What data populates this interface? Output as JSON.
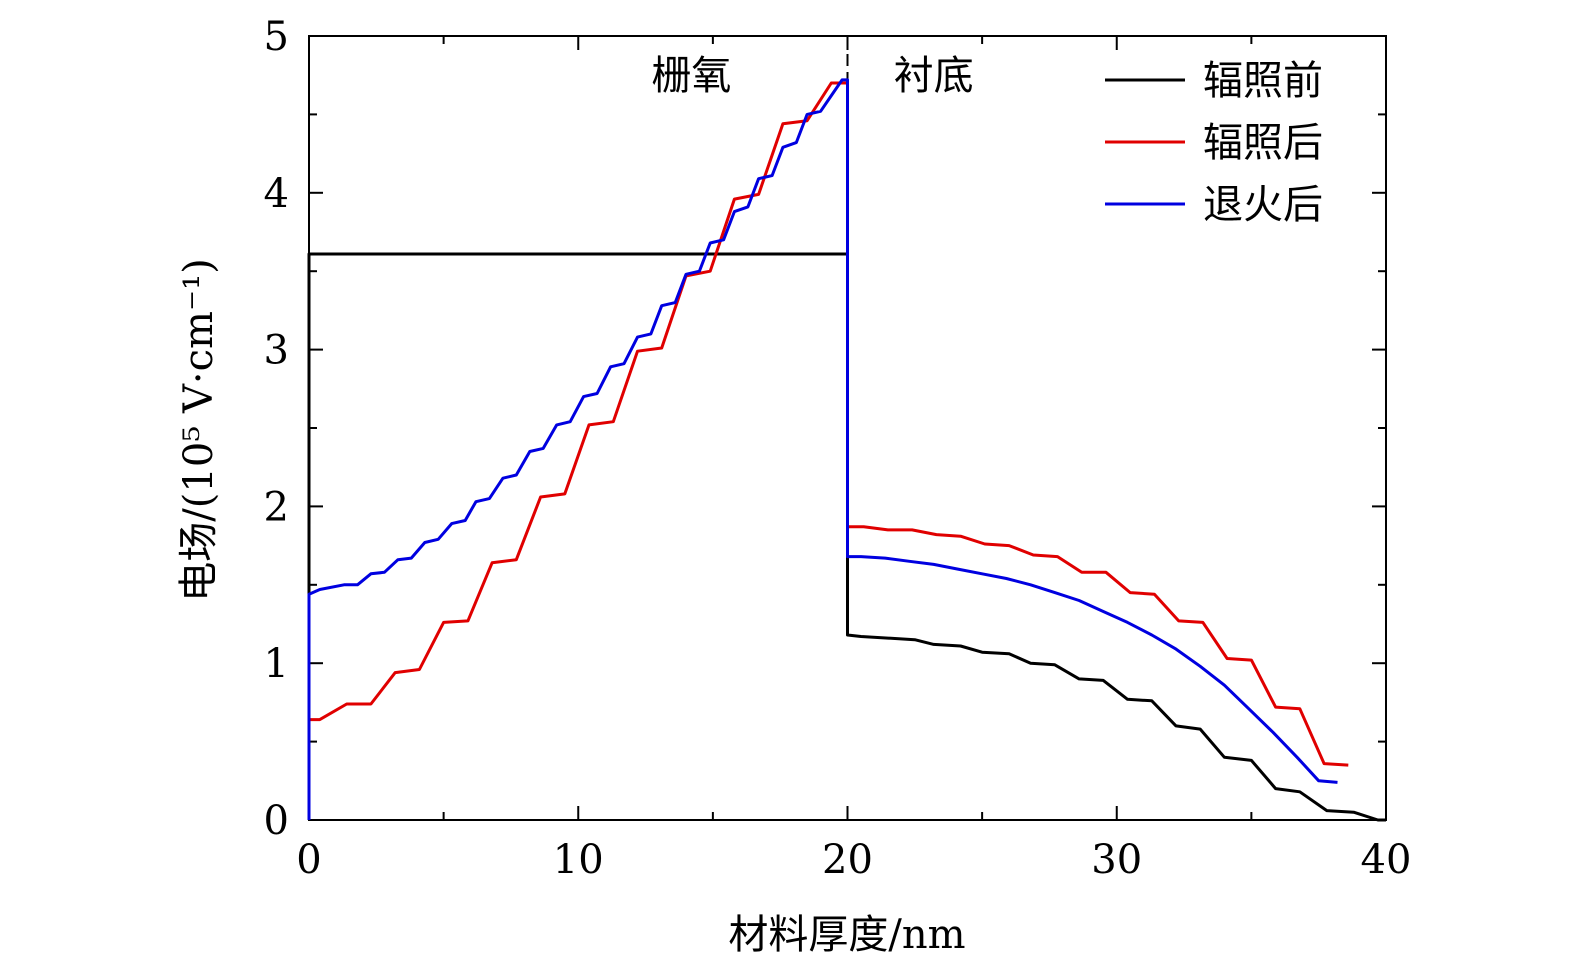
{
  "chart_data": {
    "type": "line",
    "title": "",
    "xlabel": "材料厚度/nm",
    "ylabel": "电场/(10⁵ V·cm⁻¹)",
    "xlim": [
      0,
      40
    ],
    "ylim": [
      0,
      5
    ],
    "x_ticks": [
      0,
      10,
      20,
      30,
      40
    ],
    "x_tick_labels": [
      "0",
      "10",
      "20",
      "30",
      "40"
    ],
    "y_ticks": [
      0,
      1,
      2,
      3,
      4,
      5
    ],
    "y_tick_labels": [
      "0",
      "1",
      "2",
      "3",
      "4",
      "5"
    ],
    "grid": false,
    "legend_position": "top-right",
    "annotations": [
      {
        "text": "栅氧",
        "x": 14.2,
        "y": 4.75
      },
      {
        "text": "衬底",
        "x": 23.2,
        "y": 4.75
      }
    ],
    "divider_x": 20,
    "series": [
      {
        "name": "辐照前",
        "color": "#000000",
        "points": [
          [
            0,
            0
          ],
          [
            0,
            3.61
          ],
          [
            20,
            3.61
          ],
          [
            20,
            1.18
          ],
          [
            20.5,
            1.17
          ],
          [
            21.5,
            1.16
          ],
          [
            22.5,
            1.15
          ],
          [
            23.2,
            1.12
          ],
          [
            24.2,
            1.11
          ],
          [
            25,
            1.07
          ],
          [
            26,
            1.06
          ],
          [
            26.8,
            1.0
          ],
          [
            27.7,
            0.99
          ],
          [
            28.6,
            0.9
          ],
          [
            29.5,
            0.89
          ],
          [
            30.4,
            0.77
          ],
          [
            31.3,
            0.76
          ],
          [
            32.2,
            0.6
          ],
          [
            33.1,
            0.58
          ],
          [
            34,
            0.4
          ],
          [
            35,
            0.38
          ],
          [
            35.9,
            0.2
          ],
          [
            36.8,
            0.18
          ],
          [
            37.8,
            0.06
          ],
          [
            38.8,
            0.05
          ],
          [
            39.7,
            0.0
          ],
          [
            40,
            0.0
          ]
        ]
      },
      {
        "name": "辐照后",
        "color": "#e00000",
        "points": [
          [
            0,
            0.64
          ],
          [
            0.4,
            0.64
          ],
          [
            1.4,
            0.74
          ],
          [
            2.3,
            0.74
          ],
          [
            3.2,
            0.94
          ],
          [
            4.1,
            0.96
          ],
          [
            5.0,
            1.26
          ],
          [
            5.9,
            1.27
          ],
          [
            6.8,
            1.64
          ],
          [
            7.7,
            1.66
          ],
          [
            8.6,
            2.06
          ],
          [
            9.5,
            2.08
          ],
          [
            10.4,
            2.52
          ],
          [
            11.3,
            2.54
          ],
          [
            12.2,
            2.99
          ],
          [
            13.1,
            3.01
          ],
          [
            14,
            3.47
          ],
          [
            14.9,
            3.5
          ],
          [
            15.8,
            3.96
          ],
          [
            16.7,
            3.99
          ],
          [
            17.6,
            4.44
          ],
          [
            18.5,
            4.46
          ],
          [
            19.4,
            4.7
          ],
          [
            20,
            4.7
          ],
          [
            20,
            1.87
          ],
          [
            20.6,
            1.87
          ],
          [
            21.5,
            1.85
          ],
          [
            22.4,
            1.85
          ],
          [
            23.3,
            1.82
          ],
          [
            24.2,
            1.81
          ],
          [
            25.1,
            1.76
          ],
          [
            26,
            1.75
          ],
          [
            26.9,
            1.69
          ],
          [
            27.8,
            1.68
          ],
          [
            28.7,
            1.58
          ],
          [
            29.6,
            1.58
          ],
          [
            30.5,
            1.45
          ],
          [
            31.4,
            1.44
          ],
          [
            32.3,
            1.27
          ],
          [
            33.2,
            1.26
          ],
          [
            34.1,
            1.03
          ],
          [
            35,
            1.02
          ],
          [
            35.9,
            0.72
          ],
          [
            36.8,
            0.71
          ],
          [
            37.7,
            0.36
          ],
          [
            38.6,
            0.35
          ]
        ]
      },
      {
        "name": "退火后",
        "color": "#0000e0",
        "points": [
          [
            0,
            0
          ],
          [
            0,
            1.44
          ],
          [
            0.4,
            1.47
          ],
          [
            1.3,
            1.5
          ],
          [
            1.8,
            1.5
          ],
          [
            2.3,
            1.57
          ],
          [
            2.8,
            1.58
          ],
          [
            3.3,
            1.66
          ],
          [
            3.8,
            1.67
          ],
          [
            4.3,
            1.77
          ],
          [
            4.8,
            1.79
          ],
          [
            5.3,
            1.89
          ],
          [
            5.8,
            1.91
          ],
          [
            6.2,
            2.03
          ],
          [
            6.7,
            2.05
          ],
          [
            7.2,
            2.18
          ],
          [
            7.7,
            2.2
          ],
          [
            8.2,
            2.35
          ],
          [
            8.7,
            2.37
          ],
          [
            9.2,
            2.52
          ],
          [
            9.7,
            2.54
          ],
          [
            10.2,
            2.7
          ],
          [
            10.7,
            2.72
          ],
          [
            11.2,
            2.89
          ],
          [
            11.7,
            2.91
          ],
          [
            12.2,
            3.08
          ],
          [
            12.7,
            3.1
          ],
          [
            13.1,
            3.28
          ],
          [
            13.6,
            3.3
          ],
          [
            14,
            3.48
          ],
          [
            14.5,
            3.5
          ],
          [
            14.9,
            3.68
          ],
          [
            15.4,
            3.7
          ],
          [
            15.8,
            3.88
          ],
          [
            16.3,
            3.91
          ],
          [
            16.7,
            4.09
          ],
          [
            17.2,
            4.11
          ],
          [
            17.6,
            4.29
          ],
          [
            18.1,
            4.32
          ],
          [
            18.5,
            4.5
          ],
          [
            19,
            4.52
          ],
          [
            19.4,
            4.62
          ],
          [
            19.8,
            4.72
          ],
          [
            20,
            4.72
          ],
          [
            20,
            1.68
          ],
          [
            20.5,
            1.68
          ],
          [
            21.4,
            1.67
          ],
          [
            22.3,
            1.65
          ],
          [
            23.2,
            1.63
          ],
          [
            24.1,
            1.6
          ],
          [
            25,
            1.57
          ],
          [
            25.9,
            1.54
          ],
          [
            26.8,
            1.5
          ],
          [
            27.7,
            1.45
          ],
          [
            28.6,
            1.4
          ],
          [
            29.5,
            1.33
          ],
          [
            30.4,
            1.26
          ],
          [
            31.3,
            1.18
          ],
          [
            32.2,
            1.09
          ],
          [
            33.1,
            0.98
          ],
          [
            34,
            0.86
          ],
          [
            34.9,
            0.71
          ],
          [
            35.8,
            0.56
          ],
          [
            36.7,
            0.4
          ],
          [
            37.5,
            0.25
          ],
          [
            38.2,
            0.24
          ]
        ]
      }
    ]
  }
}
